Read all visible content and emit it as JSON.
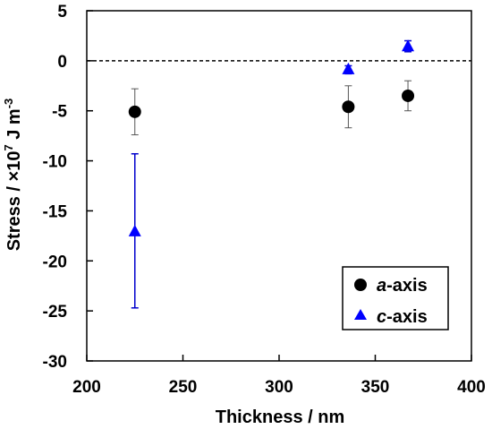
{
  "chart_data": {
    "type": "scatter",
    "title": "",
    "xlabel": "Thickness / nm",
    "ylabel": {
      "prefix": "Stress / ×10",
      "exp1": "7",
      "middle": " J m",
      "exp2": "-3"
    },
    "xlim": [
      200,
      400
    ],
    "ylim": [
      -30,
      5
    ],
    "xticks": [
      "200",
      "250",
      "300",
      "350",
      "400"
    ],
    "yticks": [
      "5",
      "0",
      "-5",
      "-10",
      "-15",
      "-20",
      "-25",
      "-30"
    ],
    "zero_reference_line": true,
    "grid": false,
    "legend_placement": "bottom-right",
    "series": [
      {
        "name": {
          "italic": "a",
          "rest": "-axis"
        },
        "marker": "circle",
        "color": "#000000",
        "errorbar_color": "#555555",
        "points": [
          {
            "x": 225,
            "y": -5.1,
            "err_low": -7.4,
            "err_high": -2.8
          },
          {
            "x": 336,
            "y": -4.6,
            "err_low": -6.7,
            "err_high": -2.5
          },
          {
            "x": 367,
            "y": -3.5,
            "err_low": -5.0,
            "err_high": -2.0
          }
        ]
      },
      {
        "name": {
          "italic": "c",
          "rest": "-axis"
        },
        "marker": "triangle",
        "color": "#0000FF",
        "errorbar_color": "#0000CC",
        "points": [
          {
            "x": 225,
            "y": -17.1,
            "err_low": -24.7,
            "err_high": -9.3
          },
          {
            "x": 336,
            "y": -0.9,
            "err_low": -1.3,
            "err_high": -0.5
          },
          {
            "x": 367,
            "y": 1.4,
            "err_low": 0.9,
            "err_high": 2.0
          }
        ]
      }
    ]
  }
}
